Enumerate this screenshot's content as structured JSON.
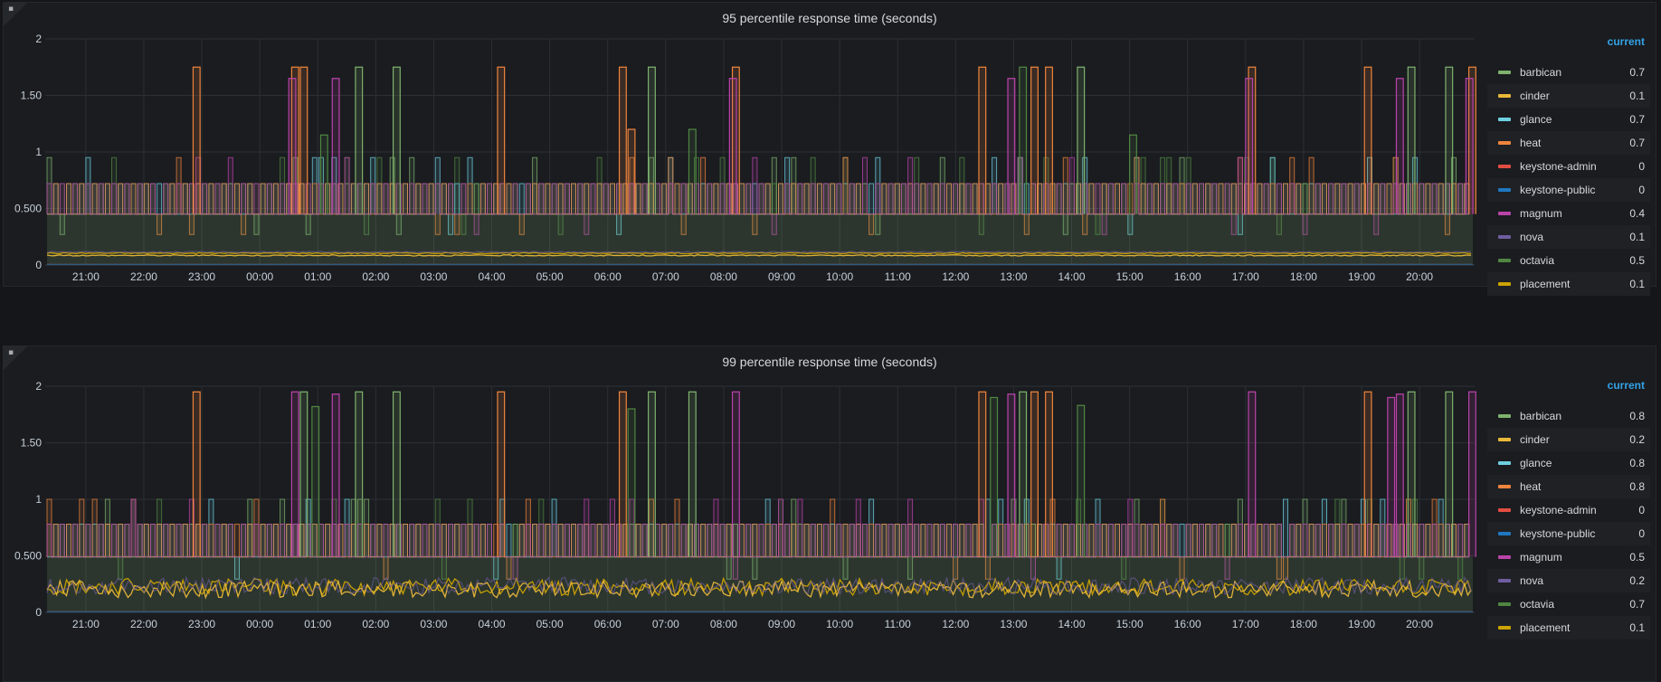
{
  "panels": [
    {
      "title": "95 percentile response time (seconds)",
      "legend_header": "current",
      "chart_data": {
        "type": "line",
        "title": "95 percentile response time (seconds)",
        "x_ticks": [
          "21:00",
          "22:00",
          "23:00",
          "00:00",
          "01:00",
          "02:00",
          "03:00",
          "04:00",
          "05:00",
          "06:00",
          "07:00",
          "08:00",
          "09:00",
          "10:00",
          "11:00",
          "12:00",
          "13:00",
          "14:00",
          "15:00",
          "16:00",
          "17:00",
          "18:00",
          "19:00",
          "20:00"
        ],
        "y_ticks": [
          "0",
          "0.500",
          "1",
          "1.50",
          "2"
        ],
        "ylim": [
          0,
          2
        ],
        "legend_placement": "right",
        "series": [
          {
            "name": "barbican",
            "current": "0.7",
            "color": "#7eb26d"
          },
          {
            "name": "cinder",
            "current": "0.1",
            "color": "#eab839"
          },
          {
            "name": "glance",
            "current": "0.7",
            "color": "#6ed0e0"
          },
          {
            "name": "heat",
            "current": "0.7",
            "color": "#ef843c"
          },
          {
            "name": "keystone-admin",
            "current": "0",
            "color": "#e24d42"
          },
          {
            "name": "keystone-public",
            "current": "0",
            "color": "#1f78c1"
          },
          {
            "name": "magnum",
            "current": "0.4",
            "color": "#ba43a9"
          },
          {
            "name": "nova",
            "current": "0.1",
            "color": "#705da0"
          },
          {
            "name": "octavia",
            "current": "0.5",
            "color": "#508642"
          },
          {
            "name": "placement",
            "current": "0.1",
            "color": "#cca300"
          }
        ],
        "spikes": [
          {
            "t": 1.85,
            "v": 1.75,
            "s": "heat"
          },
          {
            "t": 3.55,
            "v": 1.75,
            "s": "heat"
          },
          {
            "t": 3.7,
            "v": 1.75,
            "s": "heat"
          },
          {
            "t": 3.5,
            "v": 1.65,
            "s": "magnum"
          },
          {
            "t": 4.25,
            "v": 1.65,
            "s": "magnum"
          },
          {
            "t": 4.05,
            "v": 1.15,
            "s": "octavia"
          },
          {
            "t": 4.65,
            "v": 1.75,
            "s": "barbican"
          },
          {
            "t": 5.3,
            "v": 1.75,
            "s": "barbican"
          },
          {
            "t": 7.1,
            "v": 1.75,
            "s": "heat"
          },
          {
            "t": 9.2,
            "v": 1.75,
            "s": "heat"
          },
          {
            "t": 9.35,
            "v": 1.2,
            "s": "heat"
          },
          {
            "t": 9.7,
            "v": 1.75,
            "s": "barbican"
          },
          {
            "t": 10.4,
            "v": 1.2,
            "s": "octavia"
          },
          {
            "t": 11.15,
            "v": 1.75,
            "s": "heat"
          },
          {
            "t": 11.1,
            "v": 1.65,
            "s": "magnum"
          },
          {
            "t": 15.4,
            "v": 1.75,
            "s": "heat"
          },
          {
            "t": 15.9,
            "v": 1.65,
            "s": "magnum"
          },
          {
            "t": 16.1,
            "v": 1.75,
            "s": "octavia"
          },
          {
            "t": 16.3,
            "v": 1.75,
            "s": "heat"
          },
          {
            "t": 16.55,
            "v": 1.75,
            "s": "heat"
          },
          {
            "t": 17.1,
            "v": 1.75,
            "s": "barbican"
          },
          {
            "t": 18.0,
            "v": 1.15,
            "s": "octavia"
          },
          {
            "t": 20.05,
            "v": 1.75,
            "s": "heat"
          },
          {
            "t": 20.0,
            "v": 1.65,
            "s": "magnum"
          },
          {
            "t": 22.05,
            "v": 1.75,
            "s": "heat"
          },
          {
            "t": 22.6,
            "v": 1.65,
            "s": "magnum"
          },
          {
            "t": 22.8,
            "v": 1.75,
            "s": "barbican"
          },
          {
            "t": 23.45,
            "v": 1.75,
            "s": "barbican"
          },
          {
            "t": 23.85,
            "v": 1.75,
            "s": "heat"
          },
          {
            "t": 23.8,
            "v": 1.65,
            "s": "magnum"
          }
        ],
        "base_levels": {
          "high": 0.72,
          "low": 0.45,
          "spike": 0.95,
          "floor": 0.1
        }
      }
    },
    {
      "title": "99 percentile response time (seconds)",
      "legend_header": "current",
      "chart_data": {
        "type": "line",
        "title": "99 percentile response time (seconds)",
        "x_ticks": [
          "21:00",
          "22:00",
          "23:00",
          "00:00",
          "01:00",
          "02:00",
          "03:00",
          "04:00",
          "05:00",
          "06:00",
          "07:00",
          "08:00",
          "09:00",
          "10:00",
          "11:00",
          "12:00",
          "13:00",
          "14:00",
          "15:00",
          "16:00",
          "17:00",
          "18:00",
          "19:00",
          "20:00"
        ],
        "y_ticks": [
          "0",
          "0.500",
          "1",
          "1.50",
          "2"
        ],
        "ylim": [
          0,
          2
        ],
        "legend_placement": "right",
        "series": [
          {
            "name": "barbican",
            "current": "0.8",
            "color": "#7eb26d"
          },
          {
            "name": "cinder",
            "current": "0.2",
            "color": "#eab839"
          },
          {
            "name": "glance",
            "current": "0.8",
            "color": "#6ed0e0"
          },
          {
            "name": "heat",
            "current": "0.8",
            "color": "#ef843c"
          },
          {
            "name": "keystone-admin",
            "current": "0",
            "color": "#e24d42"
          },
          {
            "name": "keystone-public",
            "current": "0",
            "color": "#1f78c1"
          },
          {
            "name": "magnum",
            "current": "0.5",
            "color": "#ba43a9"
          },
          {
            "name": "nova",
            "current": "0.2",
            "color": "#705da0"
          },
          {
            "name": "octavia",
            "current": "0.7",
            "color": "#508642"
          },
          {
            "name": "placement",
            "current": "0.1",
            "color": "#cca300"
          }
        ],
        "spikes": [
          {
            "t": 1.85,
            "v": 1.95,
            "s": "heat"
          },
          {
            "t": 3.55,
            "v": 1.95,
            "s": "magnum"
          },
          {
            "t": 3.7,
            "v": 1.95,
            "s": "barbican"
          },
          {
            "t": 3.9,
            "v": 1.82,
            "s": "octavia"
          },
          {
            "t": 4.25,
            "v": 1.93,
            "s": "magnum"
          },
          {
            "t": 4.65,
            "v": 1.95,
            "s": "barbican"
          },
          {
            "t": 5.3,
            "v": 1.95,
            "s": "barbican"
          },
          {
            "t": 7.1,
            "v": 1.95,
            "s": "heat"
          },
          {
            "t": 9.2,
            "v": 1.95,
            "s": "heat"
          },
          {
            "t": 9.35,
            "v": 1.8,
            "s": "octavia"
          },
          {
            "t": 9.7,
            "v": 1.95,
            "s": "barbican"
          },
          {
            "t": 10.4,
            "v": 1.95,
            "s": "barbican"
          },
          {
            "t": 11.15,
            "v": 1.95,
            "s": "magnum"
          },
          {
            "t": 15.4,
            "v": 1.95,
            "s": "heat"
          },
          {
            "t": 15.6,
            "v": 1.9,
            "s": "octavia"
          },
          {
            "t": 15.9,
            "v": 1.93,
            "s": "magnum"
          },
          {
            "t": 16.1,
            "v": 1.95,
            "s": "barbican"
          },
          {
            "t": 16.3,
            "v": 1.95,
            "s": "heat"
          },
          {
            "t": 16.55,
            "v": 1.95,
            "s": "heat"
          },
          {
            "t": 17.1,
            "v": 1.83,
            "s": "octavia"
          },
          {
            "t": 20.05,
            "v": 1.95,
            "s": "magnum"
          },
          {
            "t": 22.05,
            "v": 1.95,
            "s": "heat"
          },
          {
            "t": 22.45,
            "v": 1.9,
            "s": "magnum"
          },
          {
            "t": 22.6,
            "v": 1.93,
            "s": "magnum"
          },
          {
            "t": 22.8,
            "v": 1.95,
            "s": "barbican"
          },
          {
            "t": 23.45,
            "v": 1.95,
            "s": "barbican"
          },
          {
            "t": 23.85,
            "v": 1.95,
            "s": "magnum"
          }
        ],
        "base_levels": {
          "high": 0.78,
          "low": 0.49,
          "spike": 1.0,
          "floor": 0.15
        }
      }
    }
  ]
}
